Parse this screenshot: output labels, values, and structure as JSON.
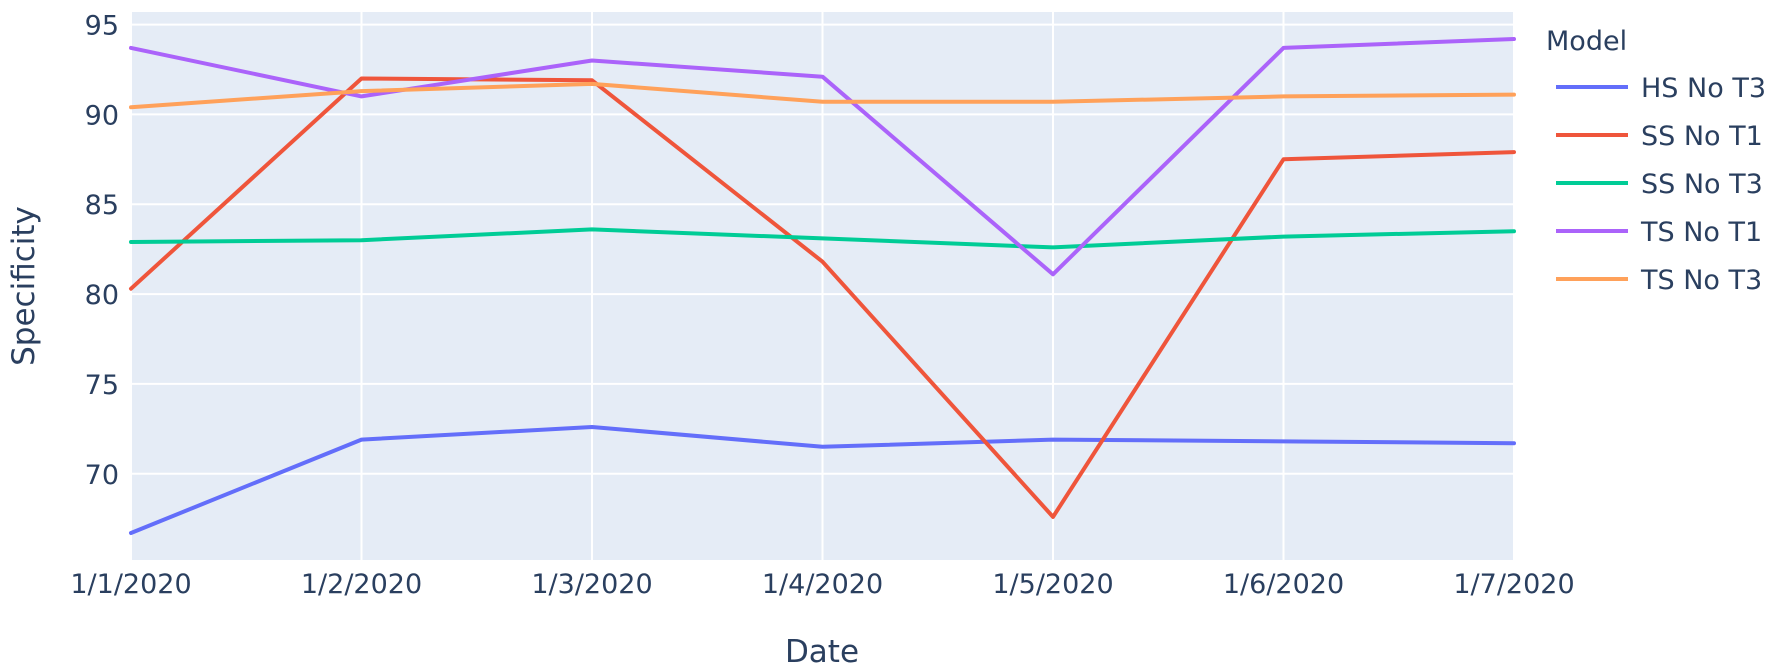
{
  "chart_data": {
    "type": "line",
    "xlabel": "Date",
    "ylabel": "Specificity",
    "x": [
      "1/1/2020",
      "1/2/2020",
      "1/3/2020",
      "1/4/2020",
      "1/5/2020",
      "1/6/2020",
      "1/7/2020"
    ],
    "yticks": [
      70,
      75,
      80,
      85,
      90,
      95
    ],
    "ylim": [
      65.2,
      95.7
    ],
    "grid": true,
    "legend": {
      "title": "Model",
      "placement": "right"
    },
    "plot_background": "#e5ecf6",
    "series": [
      {
        "name": "HS No T3",
        "color": "#636efa",
        "values": [
          66.7,
          71.9,
          72.6,
          71.5,
          71.9,
          71.8,
          71.7
        ]
      },
      {
        "name": "SS No T1",
        "color": "#ef553b",
        "values": [
          80.3,
          92.0,
          91.9,
          81.8,
          67.6,
          87.5,
          87.9
        ]
      },
      {
        "name": "SS No T3",
        "color": "#00cc96",
        "values": [
          82.9,
          83.0,
          83.6,
          83.1,
          82.6,
          83.2,
          83.5
        ]
      },
      {
        "name": "TS No T1",
        "color": "#ab63fa",
        "values": [
          93.7,
          91.0,
          93.0,
          92.1,
          81.1,
          93.7,
          94.2
        ]
      },
      {
        "name": "TS No T3",
        "color": "#ffa15a",
        "values": [
          90.4,
          91.3,
          91.7,
          90.7,
          90.7,
          91.0,
          91.1
        ]
      }
    ]
  }
}
